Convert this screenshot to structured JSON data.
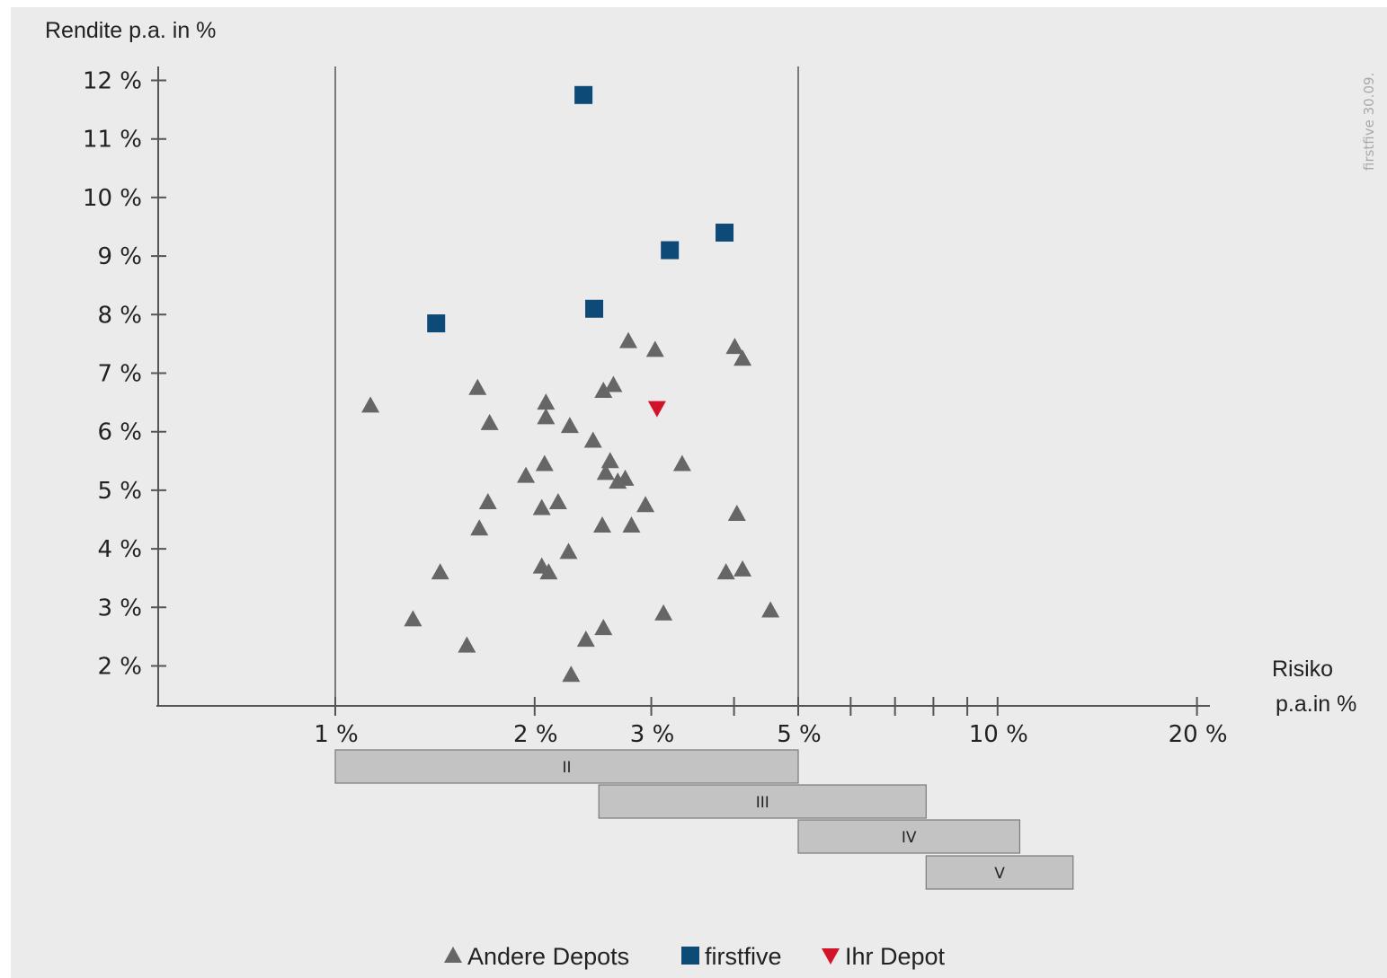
{
  "chart_data": {
    "type": "scatter",
    "ylabel": "Rendite p.a. in %",
    "xlabel_line1": "Risiko",
    "xlabel_line2": "p.a.in %",
    "x_scale": "log",
    "xlim": [
      1.0,
      20.0
    ],
    "ylim": [
      1.3,
      12.2
    ],
    "y_ticks": [
      {
        "value": 2,
        "label": "2 %"
      },
      {
        "value": 3,
        "label": "3 %"
      },
      {
        "value": 4,
        "label": "4 %"
      },
      {
        "value": 5,
        "label": "5 %"
      },
      {
        "value": 6,
        "label": "6 %"
      },
      {
        "value": 7,
        "label": "7 %"
      },
      {
        "value": 8,
        "label": "8 %"
      },
      {
        "value": 9,
        "label": "9 %"
      },
      {
        "value": 10,
        "label": "10 %"
      },
      {
        "value": 11,
        "label": "11 %"
      },
      {
        "value": 12,
        "label": "12 %"
      }
    ],
    "x_ticks_labeled": [
      {
        "value": 1,
        "label": "1 %"
      },
      {
        "value": 2,
        "label": "2 %"
      },
      {
        "value": 3,
        "label": "3 %"
      },
      {
        "value": 5,
        "label": "5 %"
      },
      {
        "value": 10,
        "label": "10 %"
      },
      {
        "value": 20,
        "label": "20 %"
      }
    ],
    "x_ticks_minor": [
      4,
      6,
      7,
      8,
      9
    ],
    "reference_lines_x": [
      1,
      5
    ],
    "risk_bands": [
      {
        "label": "II",
        "from": 1.0,
        "to": 5.0
      },
      {
        "label": "III",
        "from": 2.5,
        "to": 7.8
      },
      {
        "label": "IV",
        "from": 5.0,
        "to": 10.8
      },
      {
        "label": "V",
        "from": 7.8,
        "to": 13.0
      }
    ],
    "series": [
      {
        "name": "Andere Depots",
        "marker": "triangle-up",
        "color": "#666666",
        "points": [
          [
            1.13,
            6.45
          ],
          [
            1.31,
            2.8
          ],
          [
            1.44,
            3.6
          ],
          [
            1.58,
            2.35
          ],
          [
            1.64,
            6.75
          ],
          [
            1.65,
            4.35
          ],
          [
            1.7,
            4.8
          ],
          [
            1.71,
            6.15
          ],
          [
            1.94,
            5.25
          ],
          [
            2.05,
            4.7
          ],
          [
            2.05,
            3.7
          ],
          [
            2.07,
            5.45
          ],
          [
            2.08,
            6.5
          ],
          [
            2.08,
            6.25
          ],
          [
            2.1,
            3.6
          ],
          [
            2.17,
            4.8
          ],
          [
            2.25,
            3.95
          ],
          [
            2.26,
            6.1
          ],
          [
            2.27,
            1.85
          ],
          [
            2.39,
            2.45
          ],
          [
            2.45,
            5.85
          ],
          [
            2.53,
            4.4
          ],
          [
            2.54,
            2.65
          ],
          [
            2.54,
            6.7
          ],
          [
            2.56,
            5.3
          ],
          [
            2.6,
            5.5
          ],
          [
            2.63,
            6.8
          ],
          [
            2.67,
            5.15
          ],
          [
            2.74,
            5.2
          ],
          [
            2.77,
            7.55
          ],
          [
            2.8,
            4.4
          ],
          [
            2.94,
            4.75
          ],
          [
            3.04,
            7.4
          ],
          [
            3.13,
            2.9
          ],
          [
            3.34,
            5.45
          ],
          [
            3.89,
            3.6
          ],
          [
            4.01,
            7.45
          ],
          [
            4.04,
            4.6
          ],
          [
            4.12,
            7.25
          ],
          [
            4.12,
            3.65
          ],
          [
            4.54,
            2.95
          ]
        ]
      },
      {
        "name": "firstfive",
        "marker": "square",
        "color": "#0e4a78",
        "points": [
          [
            1.42,
            7.85
          ],
          [
            2.37,
            11.75
          ],
          [
            2.46,
            8.1
          ],
          [
            3.2,
            9.1
          ],
          [
            3.87,
            9.4
          ]
        ]
      },
      {
        "name": "Ihr Depot",
        "marker": "triangle-down",
        "color": "#d2142a",
        "points": [
          [
            3.06,
            6.4
          ]
        ]
      }
    ],
    "watermark": "firstfive 30.09."
  }
}
